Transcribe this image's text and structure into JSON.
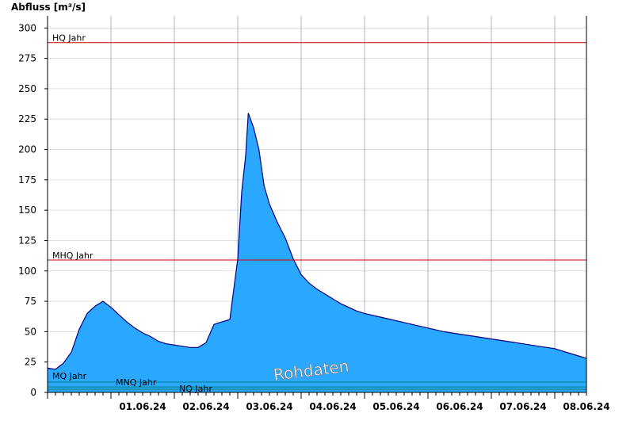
{
  "chart_data": {
    "type": "area",
    "ylabel": "Abfluss [m³/s]",
    "ylim": [
      0,
      310
    ],
    "yticks": [
      0,
      25,
      50,
      75,
      100,
      125,
      150,
      175,
      200,
      225,
      250,
      275,
      300
    ],
    "xlim": [
      "31.05.24 00:00",
      "08.06.24 12:00"
    ],
    "xticks": [
      "01.06.24",
      "02.06.24",
      "03.06.24",
      "04.06.24",
      "05.06.24",
      "06.06.24",
      "07.06.24",
      "08.06.24"
    ],
    "grid": true,
    "colors": {
      "fill": "#2aa7ff",
      "line": "#000080",
      "ref_high": "#cc0000",
      "ref_low": "#008080"
    },
    "reference_lines": [
      {
        "label": "HQ Jahr",
        "value": 288,
        "color": "#cc0000"
      },
      {
        "label": "MHQ Jahr",
        "value": 109,
        "color": "#cc0000"
      },
      {
        "label": "MQ Jahr",
        "value": 8.5,
        "color": "#008080"
      },
      {
        "label": "MNQ Jahr",
        "value": 4.5,
        "color": "#008080"
      },
      {
        "label": "NQ Jahr",
        "value": 2.5,
        "color": "#008080"
      }
    ],
    "series": [
      {
        "x": [
          "31.05.24 00:00",
          "31.05.24 03:00",
          "31.05.24 06:00",
          "31.05.24 09:00",
          "31.05.24 12:00",
          "31.05.24 15:00",
          "31.05.24 18:00",
          "31.05.24 21:00",
          "01.06.24 00:00",
          "01.06.24 03:00",
          "01.06.24 06:00",
          "01.06.24 09:00",
          "01.06.24 12:00",
          "01.06.24 15:00",
          "01.06.24 18:00",
          "01.06.24 21:00",
          "02.06.24 00:00",
          "02.06.24 03:00",
          "02.06.24 06:00",
          "02.06.24 09:00",
          "02.06.24 12:00",
          "02.06.24 15:00",
          "02.06.24 18:00",
          "02.06.24 21:00",
          "03.06.24 00:00",
          "03.06.24 01:30",
          "03.06.24 03:00",
          "03.06.24 04:00",
          "03.06.24 06:00",
          "03.06.24 08:00",
          "03.06.24 10:00",
          "03.06.24 12:00",
          "03.06.24 15:00",
          "03.06.24 18:00",
          "03.06.24 21:00",
          "04.06.24 00:00",
          "04.06.24 03:00",
          "04.06.24 06:00",
          "04.06.24 09:00",
          "04.06.24 12:00",
          "04.06.24 15:00",
          "04.06.24 18:00",
          "04.06.24 21:00",
          "05.06.24 00:00",
          "05.06.24 06:00",
          "05.06.24 12:00",
          "05.06.24 18:00",
          "06.06.24 00:00",
          "06.06.24 06:00",
          "06.06.24 12:00",
          "06.06.24 18:00",
          "07.06.24 00:00",
          "07.06.24 06:00",
          "07.06.24 12:00",
          "07.06.24 18:00",
          "08.06.24 00:00",
          "08.06.24 03:00",
          "08.06.24 06:00",
          "08.06.24 09:00",
          "08.06.24 12:00"
        ],
        "y": [
          20,
          19,
          24,
          33,
          52,
          65,
          71,
          75,
          70,
          64,
          58,
          53,
          49,
          46,
          42,
          40,
          39,
          38,
          37,
          37,
          41,
          56,
          58,
          60,
          110,
          165,
          195,
          230,
          218,
          200,
          170,
          155,
          140,
          127,
          110,
          97,
          90,
          85,
          81,
          77,
          73,
          70,
          67,
          65,
          62,
          59,
          56,
          53,
          50,
          48,
          46,
          44,
          42,
          40,
          38,
          36,
          34,
          32,
          30,
          28
        ]
      }
    ],
    "watermark": "Rohdaten"
  }
}
